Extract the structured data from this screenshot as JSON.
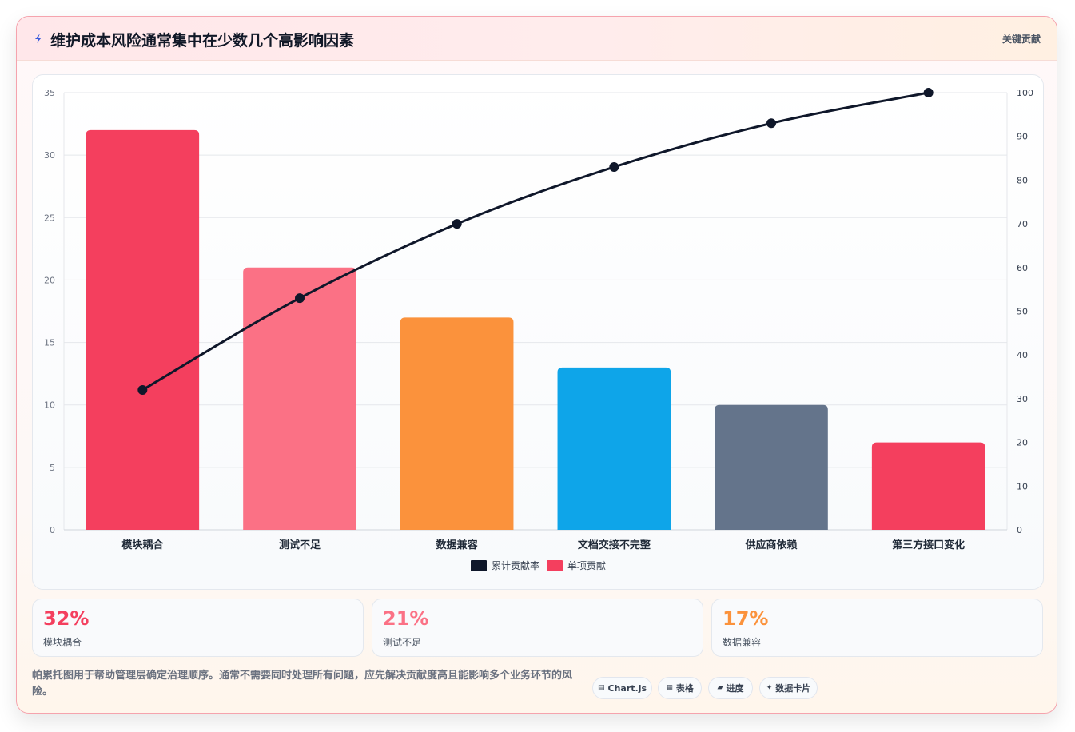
{
  "header": {
    "title": "维护成本风险通常集中在少数几个高影响因素",
    "tag": "关键贡献",
    "icon": "lightning-icon"
  },
  "chart_data": {
    "type": "bar",
    "categories": [
      "模块耦合",
      "测试不足",
      "数据兼容",
      "文档交接不完整",
      "供应商依赖",
      "第三方接口变化"
    ],
    "series": [
      {
        "name": "单项贡献",
        "type": "bar",
        "values": [
          32,
          21,
          17,
          13,
          10,
          7
        ],
        "colors": [
          "#f43f5e",
          "#fb7185",
          "#fb923c",
          "#0ea5e9",
          "#64748b",
          "#f43f5e"
        ]
      },
      {
        "name": "累计贡献率",
        "type": "line",
        "values": [
          32,
          53,
          70,
          83,
          93,
          100
        ],
        "color": "#0f172a"
      }
    ],
    "ylim": [
      0,
      35
    ],
    "yticks": [
      "0",
      "5",
      "10",
      "15",
      "20",
      "25",
      "30",
      "35"
    ],
    "y2lim": [
      0,
      100
    ],
    "y2ticks": [
      "0",
      "10",
      "20",
      "30",
      "40",
      "50",
      "60",
      "70",
      "80",
      "90",
      "100"
    ],
    "legend": [
      "累计贡献率",
      "单项贡献"
    ],
    "legend_position": "bottom",
    "grid": true
  },
  "stats": [
    {
      "value": "32%",
      "label": "模块耦合",
      "color": "#f43f5e"
    },
    {
      "value": "21%",
      "label": "测试不足",
      "color": "#fb7185"
    },
    {
      "value": "17%",
      "label": "数据兼容",
      "color": "#fb923c"
    }
  ],
  "note": "帕累托图用于帮助管理层确定治理顺序。通常不需要同时处理所有问题，应先解决贡献度高且能影响多个业务环节的风险。",
  "pills": [
    {
      "icon": "▤",
      "label": "Chart.js"
    },
    {
      "icon": "▦",
      "label": "表格"
    },
    {
      "icon": "▰",
      "label": "进度"
    },
    {
      "icon": "✦",
      "label": "数据卡片"
    }
  ]
}
